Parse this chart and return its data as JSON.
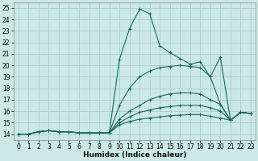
{
  "xlabel": "Humidex (Indice chaleur)",
  "bg_color": "#cce8e8",
  "grid_color": "#aacccc",
  "line_color": "#1a6b5a",
  "xlim": [
    -0.5,
    23.5
  ],
  "ylim": [
    13.5,
    25.5
  ],
  "xticks": [
    0,
    1,
    2,
    3,
    4,
    5,
    6,
    7,
    8,
    9,
    10,
    11,
    12,
    13,
    14,
    15,
    16,
    17,
    18,
    19,
    20,
    21,
    22,
    23
  ],
  "yticks": [
    14,
    15,
    16,
    17,
    18,
    19,
    20,
    21,
    22,
    23,
    24,
    25
  ],
  "curves": [
    {
      "x": [
        0,
        1,
        2,
        3,
        4,
        5,
        6,
        7,
        8,
        9,
        10,
        11,
        12,
        13,
        14,
        15,
        16,
        17,
        18,
        19,
        20,
        21,
        22,
        23
      ],
      "y": [
        14,
        14,
        14.2,
        14.3,
        14.2,
        14.2,
        14.1,
        14.1,
        14.1,
        14.1,
        20.5,
        23.2,
        24.9,
        24.5,
        21.7,
        21.1,
        20.6,
        20.1,
        20.3,
        19.0,
        20.7,
        15.2,
        15.9,
        15.8
      ]
    },
    {
      "x": [
        0,
        1,
        2,
        3,
        4,
        5,
        6,
        7,
        8,
        9,
        10,
        11,
        12,
        13,
        14,
        15,
        16,
        17,
        18,
        19,
        20,
        21,
        22,
        23
      ],
      "y": [
        14,
        14,
        14.2,
        14.3,
        14.2,
        14.2,
        14.1,
        14.1,
        14.1,
        14.1,
        16.5,
        18.0,
        19.0,
        19.5,
        19.8,
        19.9,
        20.0,
        19.9,
        19.8,
        19.0,
        16.6,
        15.2,
        15.9,
        15.8
      ]
    },
    {
      "x": [
        0,
        1,
        2,
        3,
        4,
        5,
        6,
        7,
        8,
        9,
        10,
        11,
        12,
        13,
        14,
        15,
        16,
        17,
        18,
        19,
        20,
        21,
        22,
        23
      ],
      "y": [
        14,
        14,
        14.2,
        14.3,
        14.2,
        14.2,
        14.1,
        14.1,
        14.1,
        14.1,
        15.3,
        16.0,
        16.5,
        17.0,
        17.3,
        17.5,
        17.6,
        17.6,
        17.5,
        17.0,
        16.6,
        15.2,
        15.9,
        15.8
      ]
    },
    {
      "x": [
        0,
        1,
        2,
        3,
        4,
        5,
        6,
        7,
        8,
        9,
        10,
        11,
        12,
        13,
        14,
        15,
        16,
        17,
        18,
        19,
        20,
        21,
        22,
        23
      ],
      "y": [
        14,
        14,
        14.2,
        14.3,
        14.2,
        14.2,
        14.1,
        14.1,
        14.1,
        14.1,
        15.0,
        15.5,
        15.9,
        16.1,
        16.3,
        16.4,
        16.5,
        16.5,
        16.5,
        16.3,
        16.0,
        15.2,
        15.9,
        15.8
      ]
    },
    {
      "x": [
        0,
        1,
        2,
        3,
        4,
        5,
        6,
        7,
        8,
        9,
        10,
        11,
        12,
        13,
        14,
        15,
        16,
        17,
        18,
        19,
        20,
        21,
        22,
        23
      ],
      "y": [
        14,
        14,
        14.2,
        14.3,
        14.2,
        14.2,
        14.1,
        14.1,
        14.1,
        14.1,
        14.8,
        15.1,
        15.3,
        15.4,
        15.5,
        15.6,
        15.65,
        15.7,
        15.7,
        15.55,
        15.4,
        15.2,
        15.9,
        15.8
      ]
    }
  ]
}
